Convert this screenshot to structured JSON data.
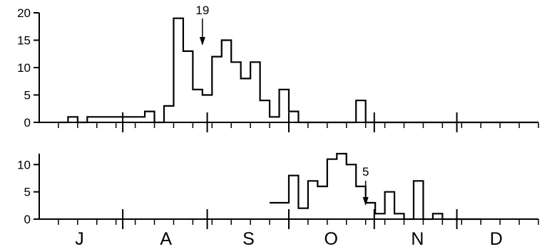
{
  "chart_data": [
    {
      "type": "histogram",
      "panel": "top",
      "x_unit": "week",
      "x_range": [
        0,
        26
      ],
      "ylim": [
        0,
        20
      ],
      "yticks": [
        0,
        5,
        10,
        15,
        20
      ],
      "step_x": [
        1.0,
        1.5,
        2.0,
        2.5,
        3.0,
        3.5,
        4.0,
        4.5,
        5.0,
        5.5,
        6.0,
        6.5,
        7.0,
        7.5,
        8.0,
        8.5,
        9.0,
        9.5,
        10.0,
        10.5,
        11.0,
        11.5,
        12.0,
        12.5,
        13.0,
        13.5,
        14.0,
        14.5,
        15.0,
        15.5,
        16.0,
        16.5,
        17.0,
        17.5,
        18.0,
        18.5,
        19.0,
        19.5,
        20.0,
        20.5,
        21.0,
        21.5,
        22.0,
        22.5,
        23.0,
        23.5,
        24.0,
        24.5,
        25.0,
        25.5,
        26.0
      ],
      "values": [
        0,
        1,
        0,
        1,
        1,
        1,
        1,
        1,
        1,
        2,
        0,
        3,
        19,
        13,
        6,
        5,
        12,
        15,
        11,
        8,
        11,
        4,
        1,
        6,
        2,
        0,
        0,
        0,
        0,
        0,
        0,
        4,
        0,
        0,
        0,
        0,
        0,
        0,
        0,
        0,
        0,
        0,
        0,
        0,
        0,
        0,
        0,
        0,
        0,
        0
      ],
      "annotation": {
        "text": "19",
        "week": 8.5
      }
    },
    {
      "type": "histogram",
      "panel": "bottom",
      "x_unit": "week",
      "x_range": [
        0,
        26
      ],
      "ylim": [
        0,
        12
      ],
      "yticks": [
        0,
        5,
        10
      ],
      "step_x": [
        12.0,
        12.5,
        13.0,
        13.5,
        14.0,
        14.5,
        15.0,
        15.5,
        16.0,
        16.5,
        17.0,
        17.5,
        18.0,
        18.5,
        19.0,
        19.5,
        20.0,
        20.5,
        21.0,
        21.5,
        22.0,
        22.5,
        23.0
      ],
      "values": [
        3,
        3,
        8,
        2,
        7,
        6,
        11,
        12,
        10,
        6,
        3,
        1,
        5,
        1,
        0,
        7,
        0,
        1,
        0,
        0,
        0,
        0
      ],
      "annotation": {
        "text": "5",
        "week": 17.0
      }
    }
  ],
  "months": [
    "J",
    "A",
    "S",
    "O",
    "N",
    "D"
  ]
}
